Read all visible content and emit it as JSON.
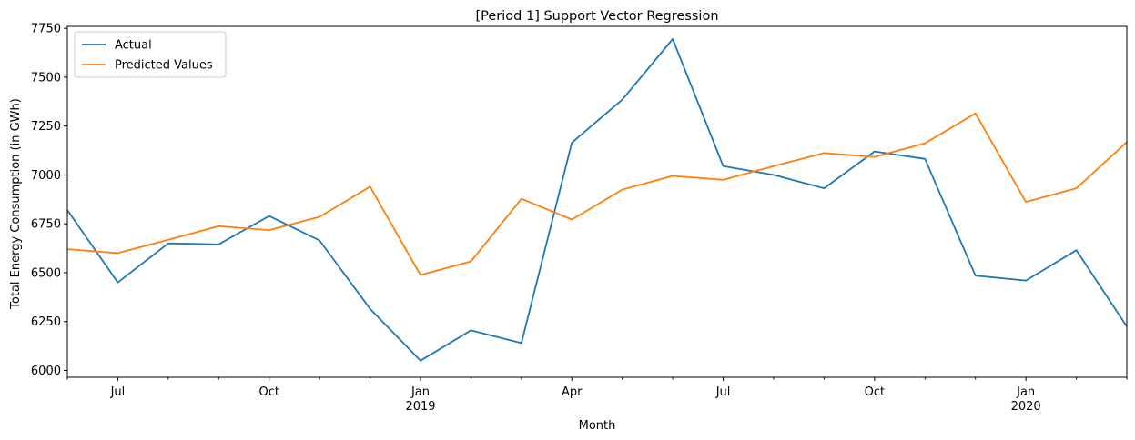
{
  "chart_data": {
    "type": "line",
    "title": "[Period 1] Support Vector Regression",
    "xlabel": "Month",
    "ylabel": "Total Energy Consumption (in GWh)",
    "x": [
      "2018-06",
      "2018-07",
      "2018-08",
      "2018-09",
      "2018-10",
      "2018-11",
      "2018-12",
      "2019-01",
      "2019-02",
      "2019-03",
      "2019-04",
      "2019-05",
      "2019-06",
      "2019-07",
      "2019-08",
      "2019-09",
      "2019-10",
      "2019-11",
      "2019-12",
      "2020-01",
      "2020-02",
      "2020-03"
    ],
    "ylim": [
      5965,
      7760
    ],
    "yticks": [
      6000,
      6250,
      6500,
      6750,
      7000,
      7250,
      7500,
      7750
    ],
    "xticks": [
      {
        "x": "2018-07",
        "label": "Jul",
        "sublabel": ""
      },
      {
        "x": "2018-10",
        "label": "Oct",
        "sublabel": ""
      },
      {
        "x": "2019-01",
        "label": "Jan",
        "sublabel": "2019"
      },
      {
        "x": "2019-04",
        "label": "Apr",
        "sublabel": ""
      },
      {
        "x": "2019-07",
        "label": "Jul",
        "sublabel": ""
      },
      {
        "x": "2019-10",
        "label": "Oct",
        "sublabel": ""
      },
      {
        "x": "2020-01",
        "label": "Jan",
        "sublabel": "2020"
      }
    ],
    "grid": false,
    "legend_position": "top-left",
    "series": [
      {
        "name": "Actual",
        "color": "#1f77b4",
        "values": [
          6820,
          6450,
          6650,
          6645,
          6790,
          6665,
          6315,
          6050,
          6205,
          6140,
          7165,
          7385,
          7695,
          7045,
          7000,
          6932,
          7120,
          7082,
          6485,
          6460,
          6615,
          6225
        ]
      },
      {
        "name": "Predicted Values",
        "color": "#ff7f0e",
        "values": [
          6620,
          6600,
          6668,
          6738,
          6718,
          6786,
          6940,
          6488,
          6558,
          6878,
          6772,
          6925,
          6995,
          6975,
          7045,
          7112,
          7092,
          7162,
          7315,
          6862,
          6932,
          7168
        ]
      }
    ]
  }
}
